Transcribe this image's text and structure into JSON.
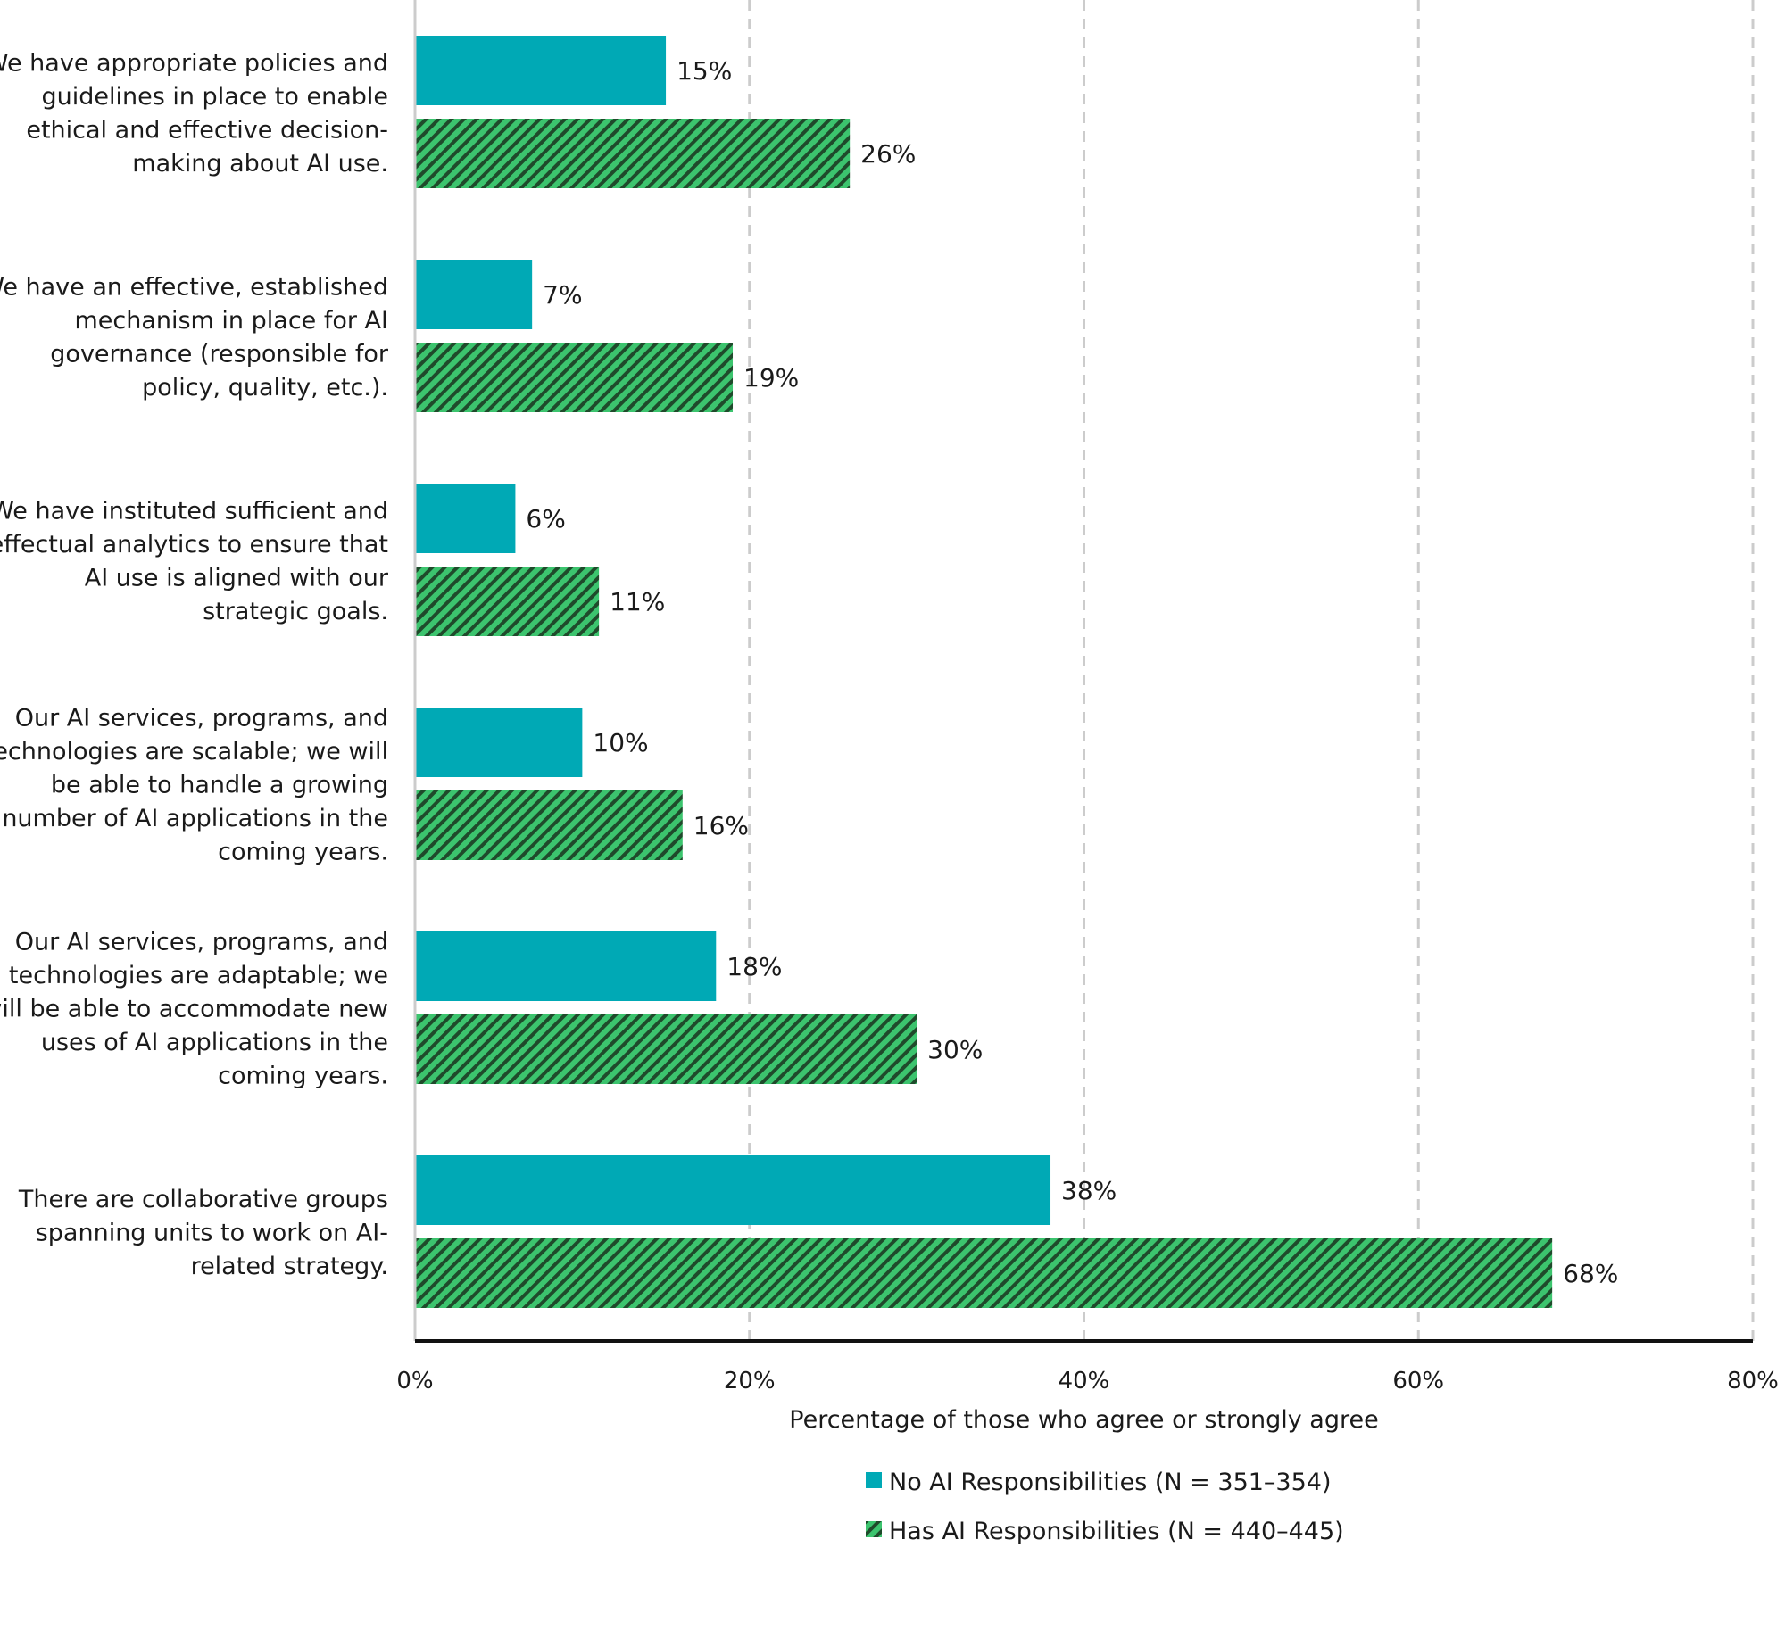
{
  "chart_data": {
    "type": "bar",
    "orientation": "horizontal",
    "categories": [
      [
        "We have appropriate policies and",
        "guidelines in place to enable",
        "ethical and effective decision-",
        "making about AI use."
      ],
      [
        "We have an effective, established",
        "mechanism in place for AI",
        "governance (responsible for",
        "policy, quality, etc.)."
      ],
      [
        "We have instituted sufficient and",
        "effectual analytics to ensure that",
        "AI use is aligned with our",
        "strategic goals."
      ],
      [
        "Our AI services, programs, and",
        "technologies are scalable; we will",
        "be able to handle a growing",
        "number of AI applications in the",
        "coming years."
      ],
      [
        "Our AI services, programs, and",
        "technologies are adaptable; we",
        "will be able to accommodate new",
        "uses of AI applications in the",
        "coming years."
      ],
      [
        "There are collaborative groups",
        "spanning units to work on AI-",
        "related strategy."
      ]
    ],
    "series": [
      {
        "name": "No AI Responsibilities (N = 351–354)",
        "values": [
          15,
          7,
          6,
          10,
          18,
          38
        ],
        "labels": [
          "15%",
          "7%",
          "6%",
          "10%",
          "18%",
          "38%"
        ],
        "color": "#00a9b5",
        "pattern": "solid"
      },
      {
        "name": "Has AI Responsibilities (N = 440–445)",
        "values": [
          26,
          19,
          11,
          16,
          30,
          68
        ],
        "labels": [
          "26%",
          "19%",
          "11%",
          "16%",
          "30%",
          "68%"
        ],
        "color": "#3cc46e",
        "pattern": "hatched"
      }
    ],
    "xlim": [
      0,
      80
    ],
    "xticks": [
      0,
      20,
      40,
      60,
      80
    ],
    "xtick_labels": [
      "0%",
      "20%",
      "40%",
      "60%",
      "80%"
    ],
    "xlabel": "Percentage of those who agree or strongly agree",
    "grid": "vertical-dashed",
    "legend_placement": "bottom-center"
  }
}
